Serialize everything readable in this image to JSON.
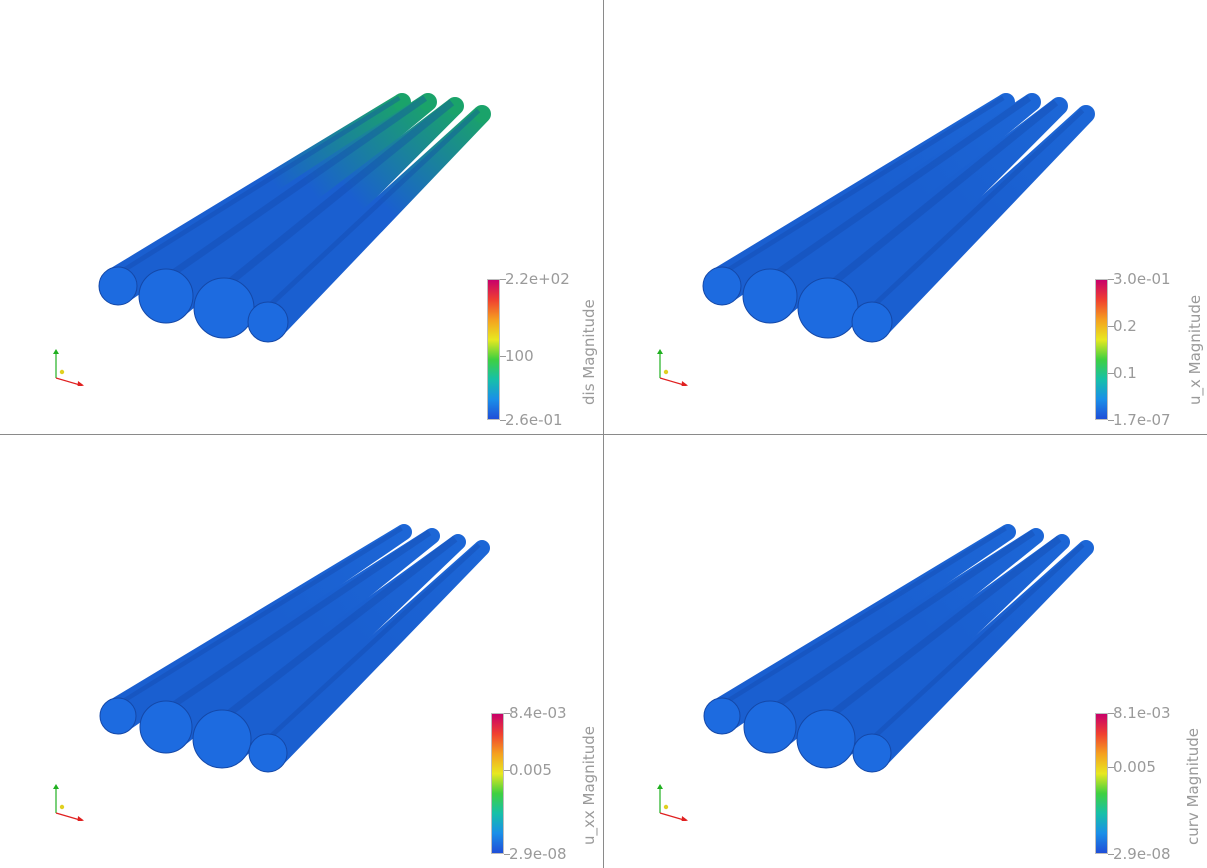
{
  "viewports": [
    {
      "id": "dis",
      "colorbar": {
        "title": "dis Magnitude",
        "max_label": "2.2e+02",
        "mid_label": "100",
        "min_label": "2.6e-01",
        "min": 0.26,
        "max": 220,
        "mid": 100
      },
      "tip_color": "#1aa36a"
    },
    {
      "id": "u_x",
      "colorbar": {
        "title": "u_x Magnitude",
        "max_label": "3.0e-01",
        "mid_labels": [
          "0.2",
          "0.1"
        ],
        "min_label": "1.7e-07",
        "min": 1.7e-07,
        "max": 0.3,
        "mids": [
          0.2,
          0.1
        ]
      },
      "tip_color": "#1c66d6"
    },
    {
      "id": "u_xx",
      "colorbar": {
        "title": "u_xx Magnitude",
        "max_label": "8.4e-03",
        "mid_label": "0.005",
        "min_label": "2.9e-08",
        "min": 2.9e-08,
        "max": 0.0084,
        "mid": 0.005
      },
      "tip_color": "#1c66d6"
    },
    {
      "id": "curv",
      "colorbar": {
        "title": "curv Magnitude",
        "max_label": "8.1e-03",
        "mid_label": "0.005",
        "min_label": "2.9e-08",
        "min": 2.9e-08,
        "max": 0.0081,
        "mid": 0.005
      },
      "tip_color": "#1c66d6"
    }
  ],
  "colors": {
    "tube_base": "#1a5fd0",
    "tube_dark": "#1448a8",
    "tube_end": "#1d6be0",
    "divider": "#8a8a8a",
    "axis_x": "#e02020",
    "axis_y": "#20b020",
    "axis_z": "#e0d020",
    "label": "#9a9a9a"
  },
  "colormap": [
    "#1f4ed8",
    "#1a8fe8",
    "#17c0a8",
    "#3fd040",
    "#e8e820",
    "#f5a020",
    "#f04030",
    "#c8006a"
  ]
}
